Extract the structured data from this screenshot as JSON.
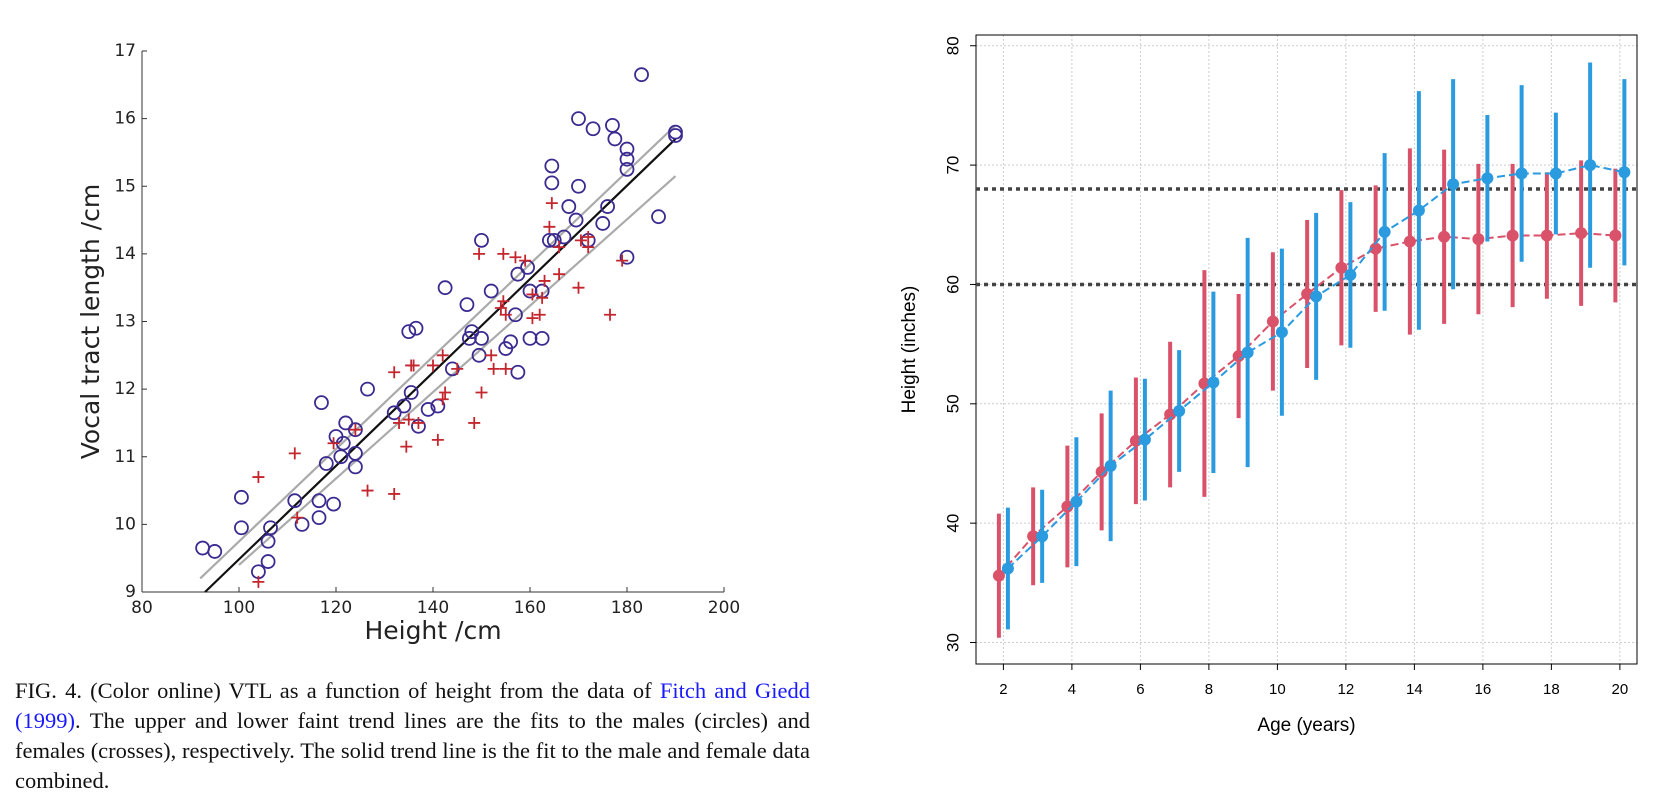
{
  "chart_data": [
    {
      "type": "scatter",
      "x_label": "Height /cm",
      "y_label": "Vocal tract length /cm",
      "xlim": [
        80,
        200
      ],
      "xticks": [
        80,
        100,
        120,
        140,
        160,
        180,
        200
      ],
      "ylim": [
        9,
        17
      ],
      "yticks": [
        9,
        10,
        11,
        12,
        13,
        14,
        15,
        16,
        17
      ],
      "series": [
        {
          "marker": "circle",
          "color": "#3b2a8f",
          "x": [
            92.5,
            95,
            100.5,
            100.5,
            104,
            106,
            106,
            106.5,
            111.5,
            113,
            116.5,
            116.5,
            117,
            118,
            119.5,
            120,
            121,
            121.5,
            122,
            124,
            124,
            124,
            126.5,
            132,
            134,
            135,
            135.5,
            136.5,
            137,
            139,
            141,
            142.5,
            144,
            147,
            147.5,
            148,
            149.5,
            150,
            150,
            152,
            155,
            156,
            157,
            157.5,
            157.5,
            159.5,
            160,
            160,
            162.5,
            162.5,
            164,
            164.5,
            164.5,
            165,
            167,
            168,
            169.5,
            170,
            170,
            172,
            173,
            175,
            176,
            177,
            177.5,
            180,
            180,
            180,
            180,
            183,
            186.5,
            190,
            190
          ],
          "y": [
            9.65,
            9.6,
            10.4,
            9.95,
            9.3,
            9.45,
            9.75,
            9.95,
            10.35,
            10.0,
            10.1,
            10.35,
            11.8,
            10.9,
            10.3,
            11.3,
            11.0,
            11.2,
            11.5,
            11.05,
            10.85,
            11.4,
            12.0,
            11.65,
            11.75,
            12.85,
            11.95,
            12.9,
            11.45,
            11.7,
            11.75,
            13.5,
            12.3,
            13.25,
            12.75,
            12.85,
            12.5,
            12.75,
            14.2,
            13.45,
            12.6,
            12.7,
            13.1,
            13.7,
            12.25,
            13.8,
            13.45,
            12.75,
            12.75,
            13.45,
            14.2,
            15.3,
            15.05,
            14.2,
            14.25,
            14.7,
            14.5,
            15.0,
            16.0,
            14.2,
            15.85,
            14.45,
            14.7,
            15.9,
            15.7,
            15.55,
            15.4,
            15.25,
            13.95,
            16.65,
            14.55,
            15.75,
            15.8
          ]
        },
        {
          "marker": "cross",
          "color": "#c4262e",
          "x": [
            104,
            104,
            111.5,
            112,
            119.5,
            124,
            126.5,
            132,
            132,
            133,
            134.5,
            135,
            135.5,
            136,
            137,
            140,
            141,
            142,
            142,
            142.5,
            145,
            148.5,
            149.5,
            150,
            152,
            152.5,
            154,
            154.5,
            154.5,
            155,
            155,
            157,
            159,
            160.5,
            160.5,
            162,
            162.5,
            163,
            164,
            164.5,
            166,
            166,
            170,
            170.5,
            172,
            172,
            176.5,
            179
          ],
          "y": [
            10.7,
            9.15,
            11.05,
            10.1,
            11.2,
            11.4,
            10.5,
            12.25,
            10.45,
            11.5,
            11.15,
            11.55,
            12.35,
            12.35,
            11.5,
            12.35,
            11.25,
            11.85,
            12.5,
            11.95,
            12.3,
            11.5,
            14.0,
            11.95,
            12.5,
            12.3,
            13.2,
            13.3,
            14.0,
            12.3,
            13.1,
            13.95,
            13.9,
            13.4,
            13.05,
            13.1,
            13.35,
            13.6,
            14.4,
            14.75,
            13.7,
            14.1,
            13.5,
            14.2,
            14.25,
            14.1,
            13.1,
            13.9
          ]
        }
      ],
      "trend_lines": [
        {
          "color": "#aaaaaa",
          "x": [
            92,
            190
          ],
          "y": [
            9.2,
            15.9
          ]
        },
        {
          "color": "#aaaaaa",
          "x": [
            100,
            190
          ],
          "y": [
            9.4,
            15.15
          ]
        },
        {
          "color": "#111111",
          "x": [
            93,
            190
          ],
          "y": [
            9.0,
            15.7
          ]
        }
      ]
    },
    {
      "type": "line",
      "x_label": "Age (years)",
      "y_label": "Height (inches)",
      "xlim": [
        1.2,
        20.5
      ],
      "xticks": [
        2,
        4,
        6,
        8,
        10,
        12,
        14,
        16,
        18,
        20
      ],
      "ylim": [
        28.2,
        80.9
      ],
      "yticks": [
        30,
        40,
        50,
        60,
        70,
        80
      ],
      "grid": true,
      "hlines": [
        60,
        68
      ],
      "x": [
        2,
        3,
        4,
        5,
        6,
        7,
        8,
        9,
        10,
        11,
        12,
        13,
        14,
        15,
        16,
        17,
        18,
        19,
        20
      ],
      "series": [
        {
          "color": "#d9526a",
          "values": [
            35.6,
            38.9,
            41.4,
            44.3,
            46.9,
            49.1,
            51.7,
            54.0,
            56.9,
            59.2,
            61.4,
            63.0,
            63.6,
            64.0,
            63.8,
            64.1,
            64.1,
            64.3,
            64.1
          ],
          "errors": [
            5.2,
            4.1,
            5.1,
            4.9,
            5.3,
            6.1,
            9.5,
            5.2,
            5.8,
            6.2,
            6.5,
            5.3,
            7.8,
            7.3,
            6.3,
            6.0,
            5.3,
            6.1,
            5.6
          ]
        },
        {
          "color": "#2b9be0",
          "values": [
            36.2,
            38.9,
            41.8,
            44.8,
            47.0,
            49.4,
            51.8,
            54.3,
            56.0,
            59.0,
            60.8,
            64.4,
            66.2,
            68.4,
            68.9,
            69.3,
            69.3,
            70.0,
            69.4
          ],
          "errors": [
            5.1,
            3.9,
            5.4,
            6.3,
            5.1,
            5.1,
            7.6,
            9.6,
            7.0,
            7.0,
            6.1,
            6.6,
            10.0,
            8.8,
            5.3,
            7.4,
            5.1,
            8.6,
            7.8
          ]
        }
      ]
    }
  ],
  "caption": {
    "parts": [
      "FIG. 4. (Color online) VTL as a function of height from the data of ",
      "Fitch and Giedd (1999)",
      ". The upper and lower faint trend lines are the fits to the males (circles) and females (crosses), respectively. The solid trend line is the fit to the male and female data combined."
    ]
  }
}
